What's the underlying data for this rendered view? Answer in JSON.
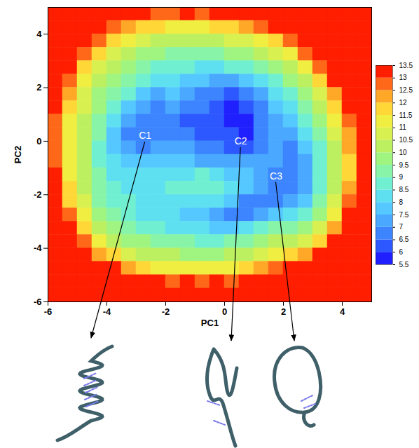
{
  "chart_data": {
    "type": "heatmap",
    "xlabel": "PC1",
    "ylabel": "PC2",
    "xlim": [
      -6,
      5
    ],
    "ylim": [
      -6,
      5
    ],
    "xticks": [
      -6,
      -4,
      -2,
      0,
      2,
      4
    ],
    "yticks": [
      -6,
      -4,
      -2,
      0,
      2,
      4
    ],
    "x_edges": [
      -6,
      -5.5,
      -5,
      -4.5,
      -4,
      -3.5,
      -3,
      -2.5,
      -2,
      -1.5,
      -1,
      -0.5,
      0,
      0.5,
      1,
      1.5,
      2,
      2.5,
      3,
      3.5,
      4,
      4.5,
      5
    ],
    "y_edges": [
      5,
      4.5,
      4,
      3.5,
      3,
      2.5,
      2,
      1.5,
      1,
      0.5,
      0,
      -0.5,
      -1,
      -1.5,
      -2,
      -2.5,
      -3,
      -3.5,
      -4,
      -4.5,
      -5,
      -5.5,
      -6
    ],
    "values": [
      [
        13.5,
        13.5,
        13.5,
        13.5,
        13.5,
        13.5,
        13,
        12.5,
        12.5,
        13,
        12.5,
        13,
        13.5,
        13.5,
        13.5,
        13.5,
        13.5,
        13.5,
        13.5,
        13.5,
        13.5,
        13.5
      ],
      [
        13.5,
        13.5,
        13.5,
        13.5,
        12.5,
        12,
        11.5,
        11.5,
        11,
        11,
        11,
        11.5,
        11.5,
        12,
        12.5,
        13.5,
        13.5,
        13.5,
        13.5,
        13.5,
        13.5,
        13.5
      ],
      [
        13.5,
        13.5,
        13.5,
        12.5,
        11.5,
        11,
        10.5,
        10,
        10,
        10,
        10,
        10,
        10.5,
        10.5,
        11,
        11.5,
        12.5,
        13.5,
        13.5,
        13.5,
        13.5,
        13.5
      ],
      [
        13.5,
        13.5,
        12.5,
        11.5,
        10.5,
        10,
        9.5,
        9.5,
        9,
        9,
        9,
        9,
        9.5,
        9.5,
        10,
        10.5,
        11,
        12.5,
        13.5,
        13.5,
        13.5,
        13.5
      ],
      [
        13.5,
        13,
        11.5,
        10.5,
        10,
        9.5,
        9,
        8.5,
        8.5,
        8.5,
        8,
        8,
        8.5,
        8.5,
        9,
        9.5,
        10,
        11,
        12.5,
        13.5,
        13.5,
        13.5
      ],
      [
        13.5,
        12.5,
        11,
        10,
        9.5,
        9,
        8.5,
        8,
        8,
        7.5,
        7.5,
        7,
        7,
        7.5,
        8,
        8.5,
        9.5,
        10,
        11.5,
        13,
        13.5,
        13.5
      ],
      [
        13.5,
        12,
        10.5,
        9.5,
        9,
        8.5,
        7.5,
        7,
        7.5,
        7,
        6.5,
        6.5,
        6,
        6.5,
        7,
        8,
        8.5,
        9.5,
        10.5,
        12,
        13.5,
        13.5
      ],
      [
        13,
        11.5,
        10.5,
        9.5,
        8.5,
        7.5,
        7,
        6.5,
        7,
        6.5,
        6.5,
        6,
        5.5,
        6,
        6.5,
        7.5,
        8,
        9,
        10,
        11.5,
        13,
        13.5
      ],
      [
        12.5,
        11,
        10,
        9,
        8,
        7,
        6.5,
        6.5,
        6.5,
        6,
        6,
        6,
        5.5,
        5.5,
        6.5,
        7,
        7.5,
        8.5,
        9.5,
        11,
        12.5,
        13.5
      ],
      [
        12.5,
        11,
        10,
        9,
        7.5,
        6.5,
        6.5,
        6.5,
        6.5,
        6.5,
        6,
        6,
        6,
        5.5,
        6.5,
        7,
        7,
        8,
        9,
        10.5,
        12,
        13.5
      ],
      [
        12.5,
        11,
        10,
        8.5,
        7.5,
        7,
        6.5,
        7,
        7,
        7,
        6.5,
        6.5,
        6,
        6,
        6.5,
        7,
        6.5,
        7.5,
        8.5,
        10,
        12,
        13.5
      ],
      [
        12.5,
        11,
        10,
        8.5,
        8,
        7.5,
        7.5,
        7.5,
        7.5,
        7.5,
        7,
        7,
        7,
        7,
        7,
        7,
        6.5,
        7,
        8.5,
        10,
        11.5,
        13.5
      ],
      [
        13,
        11,
        10,
        9,
        8,
        8,
        8,
        8,
        8,
        8,
        8.5,
        8,
        7.5,
        7.5,
        7,
        6.5,
        6.5,
        7,
        8.5,
        10,
        11.5,
        13.5
      ],
      [
        13,
        11.5,
        10,
        9,
        8.5,
        8,
        8,
        8,
        8.5,
        8.5,
        8.5,
        8.5,
        8,
        7.5,
        7,
        6.5,
        6.5,
        7,
        8.5,
        10,
        12,
        13.5
      ],
      [
        13.5,
        11.5,
        10.5,
        9,
        8.5,
        8.5,
        8,
        8,
        8,
        8,
        8,
        8,
        7.5,
        6.5,
        6.5,
        6.5,
        7,
        7.5,
        9,
        10.5,
        12.5,
        13.5
      ],
      [
        13.5,
        12.5,
        11,
        9.5,
        9,
        8.5,
        8,
        8,
        8,
        7.5,
        7.5,
        7,
        6.5,
        6.5,
        7,
        7.5,
        8,
        8.5,
        9.5,
        11,
        13,
        13.5
      ],
      [
        13.5,
        13,
        11.5,
        10,
        9.5,
        9,
        8.5,
        8.5,
        8,
        8,
        8,
        7.5,
        7.5,
        8,
        8.5,
        9,
        9,
        9.5,
        10.5,
        12,
        13.5,
        13.5
      ],
      [
        13.5,
        13.5,
        12.5,
        11,
        10,
        9.5,
        9.5,
        9,
        9,
        9,
        8.5,
        8.5,
        9,
        9,
        9.5,
        10,
        10,
        10.5,
        11.5,
        13,
        13.5,
        13.5
      ],
      [
        13.5,
        13.5,
        13.5,
        12,
        11.5,
        10.5,
        10,
        10,
        10,
        9.5,
        9.5,
        9.5,
        10,
        10,
        10.5,
        11,
        11.5,
        12,
        13,
        13.5,
        13.5,
        13.5
      ],
      [
        13.5,
        13.5,
        13.5,
        13.5,
        13,
        12,
        11.5,
        11,
        11,
        11,
        11,
        11,
        11,
        11.5,
        12,
        12.5,
        13,
        13.5,
        13.5,
        13.5,
        13.5,
        13.5
      ],
      [
        13.5,
        13.5,
        13.5,
        13.5,
        13.5,
        13.5,
        13.5,
        13,
        12.5,
        13,
        12.5,
        13,
        12.5,
        13,
        13.5,
        13.5,
        13.5,
        13.5,
        13.5,
        13.5,
        13.5,
        13.5
      ],
      [
        13.5,
        13.5,
        13.5,
        13.5,
        13.5,
        13.5,
        13.5,
        13.5,
        13.5,
        13.5,
        13.5,
        13.5,
        13.5,
        13.5,
        13.5,
        13.5,
        13.5,
        13.5,
        13.5,
        13.5,
        13.5,
        13.5
      ]
    ],
    "colorbar": {
      "range": [
        5.5,
        13.5
      ],
      "ticks": [
        5.5,
        6,
        6.5,
        7,
        7.5,
        8,
        8.5,
        9,
        9.5,
        10,
        10.5,
        11,
        11.5,
        12,
        12.5,
        13,
        13.5
      ],
      "colors": [
        "#2020ff",
        "#2e58ff",
        "#3c85ff",
        "#4aa8ff",
        "#55c8ff",
        "#5fe0f0",
        "#70f0d0",
        "#88f4a8",
        "#a0f480",
        "#bcf060",
        "#d8f050",
        "#f0ee40",
        "#ffd838",
        "#ffa828",
        "#ff6818",
        "#ff1e00"
      ]
    },
    "annotations": [
      {
        "text": "C1",
        "x": -2.7,
        "y": 0.2
      },
      {
        "text": "C2",
        "x": 0.55,
        "y": 0.0
      },
      {
        "text": "C3",
        "x": 1.75,
        "y": -1.3
      }
    ]
  }
}
